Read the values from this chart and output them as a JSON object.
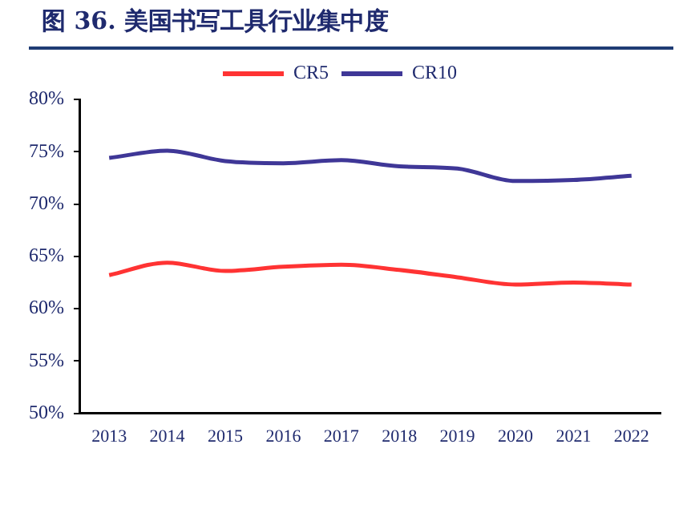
{
  "chart_data": {
    "type": "line",
    "title": "图 36. 美国书写工具行业集中度",
    "categories": [
      "2013",
      "2014",
      "2015",
      "2016",
      "2017",
      "2018",
      "2019",
      "2020",
      "2021",
      "2022"
    ],
    "series": [
      {
        "name": "CR5",
        "color": "#ff3333",
        "values": [
          63.2,
          64.4,
          63.6,
          64.0,
          64.2,
          63.7,
          63.0,
          62.3,
          62.5,
          62.3
        ]
      },
      {
        "name": "CR10",
        "color": "#3f3797",
        "values": [
          74.4,
          75.1,
          74.1,
          73.9,
          74.2,
          73.6,
          73.4,
          72.2,
          72.3,
          72.7
        ]
      }
    ],
    "ylim": [
      50,
      80
    ],
    "yticks": [
      {
        "value": 50,
        "label": "50%"
      },
      {
        "value": 55,
        "label": "55%"
      },
      {
        "value": 60,
        "label": "60%"
      },
      {
        "value": 65,
        "label": "65%"
      },
      {
        "value": 70,
        "label": "70%"
      },
      {
        "value": 75,
        "label": "75%"
      },
      {
        "value": 80,
        "label": "80%"
      }
    ],
    "grid": false,
    "legend": "top",
    "marker": "none",
    "line_style": "solid"
  }
}
